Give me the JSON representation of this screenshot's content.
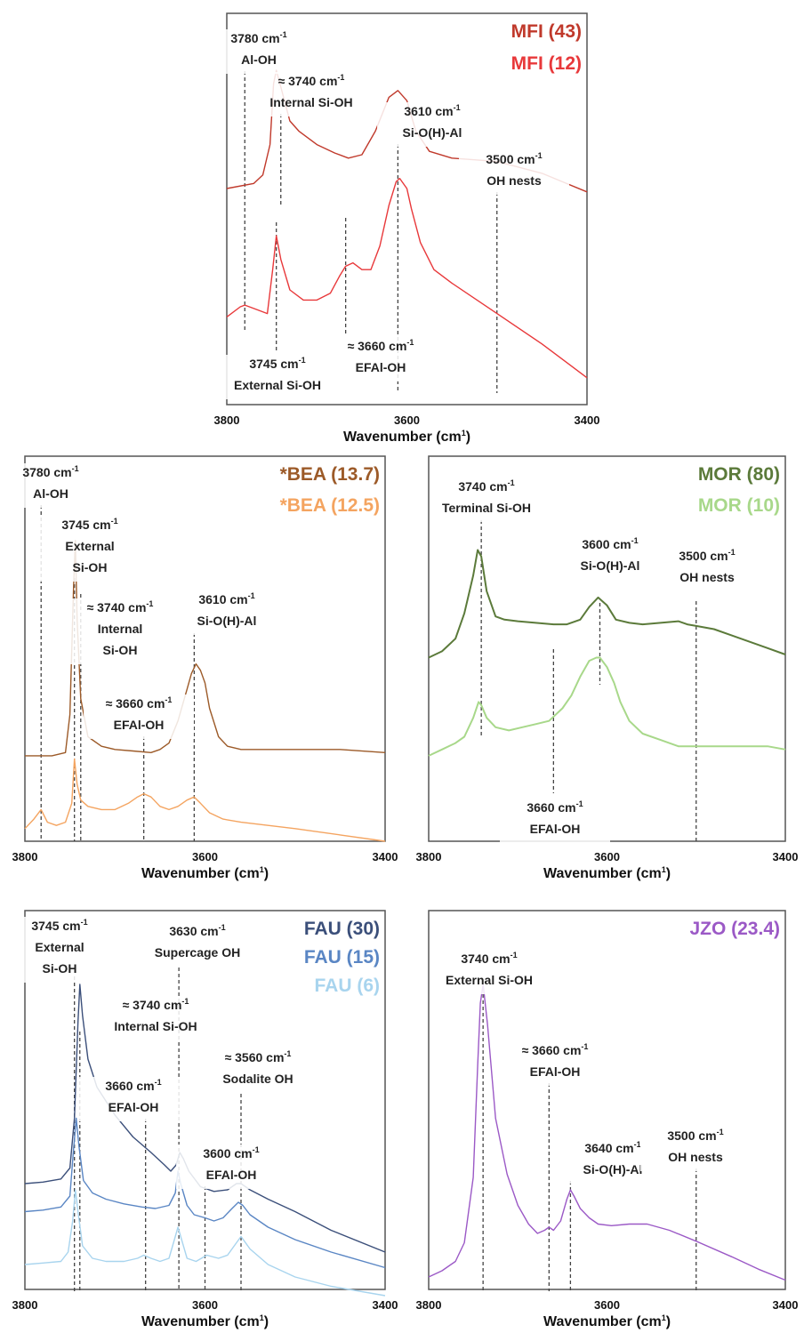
{
  "chart_data": [
    {
      "id": "mfi",
      "type": "line",
      "xlim": [
        3800,
        3400
      ],
      "x_ticks": [
        3800,
        3600,
        3400
      ],
      "xlabel": "Wavenumber (cm",
      "xlabel_sup": "1",
      "xlabel_tail": ")",
      "y_axis": "hidden",
      "grid": false,
      "legend_position": "top-right",
      "series": [
        {
          "name": "MFI (43)",
          "color": "#c0392b",
          "x": [
            3800,
            3770,
            3760,
            3752,
            3748,
            3745,
            3740,
            3730,
            3720,
            3700,
            3680,
            3665,
            3650,
            3635,
            3620,
            3610,
            3600,
            3590,
            3575,
            3550,
            3500,
            3450,
            3400
          ],
          "y": [
            0.6,
            0.615,
            0.64,
            0.73,
            0.91,
            0.95,
            0.9,
            0.8,
            0.77,
            0.73,
            0.705,
            0.69,
            0.7,
            0.77,
            0.87,
            0.89,
            0.86,
            0.77,
            0.71,
            0.69,
            0.68,
            0.645,
            0.59
          ]
        },
        {
          "name": "MFI (12)",
          "color": "#e8383a",
          "x": [
            3800,
            3785,
            3780,
            3770,
            3755,
            3749,
            3745,
            3740,
            3730,
            3715,
            3700,
            3685,
            3675,
            3668,
            3660,
            3650,
            3640,
            3630,
            3620,
            3612,
            3608,
            3600,
            3595,
            3585,
            3570,
            3550,
            3500,
            3450,
            3400
          ],
          "y": [
            0.22,
            0.25,
            0.255,
            0.245,
            0.23,
            0.36,
            0.46,
            0.39,
            0.3,
            0.27,
            0.27,
            0.29,
            0.34,
            0.37,
            0.38,
            0.36,
            0.36,
            0.43,
            0.55,
            0.62,
            0.63,
            0.6,
            0.54,
            0.44,
            0.36,
            0.32,
            0.23,
            0.14,
            0.04
          ]
        }
      ],
      "annotations": [
        {
          "text": "3780 cm",
          "sup": "-1",
          "line2": "Al-OH",
          "x": 3780
        },
        {
          "text": "≈ 3740 cm",
          "sup": "-1",
          "line2": "Internal Si-OH",
          "x": 3740
        },
        {
          "text": "3610 cm",
          "sup": "-1",
          "line2": "Si-O(H)-Al",
          "x": 3610
        },
        {
          "text": "3500 cm",
          "sup": "-1",
          "line2": "OH nests",
          "x": 3500
        },
        {
          "text": "3745 cm",
          "sup": "-1",
          "line2": "External Si-OH",
          "x": 3745
        },
        {
          "text": "≈ 3660 cm",
          "sup": "-1",
          "line2": "EFAl-OH",
          "x": 3668
        }
      ]
    },
    {
      "id": "bea",
      "type": "line",
      "xlim": [
        3800,
        3400
      ],
      "x_ticks": [
        3800,
        3600,
        3400
      ],
      "xlabel": "Wavenumber (cm",
      "xlabel_sup": "1",
      "xlabel_tail": ")",
      "y_axis": "hidden",
      "grid": false,
      "legend_position": "top-right",
      "series": [
        {
          "name": "*BEA (13.7)",
          "color": "#9c5a28",
          "x": [
            3800,
            3770,
            3755,
            3750,
            3746,
            3744,
            3742,
            3738,
            3730,
            3715,
            3700,
            3680,
            3660,
            3650,
            3640,
            3630,
            3620,
            3615,
            3610,
            3605,
            3600,
            3595,
            3585,
            3575,
            3560,
            3500,
            3450,
            3400
          ],
          "y": [
            0.27,
            0.27,
            0.28,
            0.4,
            0.8,
            0.95,
            0.7,
            0.45,
            0.33,
            0.3,
            0.29,
            0.285,
            0.28,
            0.29,
            0.31,
            0.38,
            0.48,
            0.53,
            0.56,
            0.54,
            0.5,
            0.42,
            0.33,
            0.3,
            0.29,
            0.29,
            0.29,
            0.28
          ]
        },
        {
          "name": "*BEA (12.5)",
          "color": "#f4a460",
          "x": [
            3800,
            3790,
            3782,
            3775,
            3765,
            3755,
            3748,
            3745,
            3742,
            3738,
            3730,
            3715,
            3700,
            3685,
            3675,
            3668,
            3660,
            3650,
            3640,
            3630,
            3620,
            3612,
            3605,
            3595,
            3580,
            3560,
            3500,
            3450,
            3400
          ],
          "y": [
            0.04,
            0.07,
            0.1,
            0.06,
            0.05,
            0.06,
            0.12,
            0.26,
            0.18,
            0.13,
            0.11,
            0.1,
            0.1,
            0.12,
            0.14,
            0.15,
            0.14,
            0.11,
            0.1,
            0.11,
            0.13,
            0.14,
            0.12,
            0.09,
            0.07,
            0.06,
            0.04,
            0.02,
            0.0
          ]
        }
      ],
      "annotations": [
        {
          "text": "3780 cm",
          "sup": "-1",
          "line2": "Al-OH",
          "x": 3782
        },
        {
          "text": "3745 cm",
          "sup": "-1",
          "line2": "External",
          "line3": "Si-OH",
          "x": 3745
        },
        {
          "text": "≈ 3740 cm",
          "sup": "-1",
          "line2": "Internal",
          "line3": "Si-OH",
          "x": 3738
        },
        {
          "text": "3610 cm",
          "sup": "-1",
          "line2": "Si-O(H)-Al",
          "x": 3612
        },
        {
          "text": "≈ 3660 cm",
          "sup": "-1",
          "line2": "EFAl-OH",
          "x": 3668
        }
      ]
    },
    {
      "id": "mor",
      "type": "line",
      "xlim": [
        3800,
        3400
      ],
      "x_ticks": [
        3800,
        3600,
        3400
      ],
      "xlabel": "Wavenumber (cm",
      "xlabel_sup": "1",
      "xlabel_tail": ")",
      "y_axis": "hidden",
      "grid": false,
      "legend_position": "top-right",
      "series": [
        {
          "name": "MOR (80)",
          "color": "#5b7a3a",
          "x": [
            3800,
            3785,
            3770,
            3760,
            3750,
            3745,
            3741,
            3735,
            3725,
            3715,
            3700,
            3680,
            3660,
            3645,
            3630,
            3620,
            3610,
            3600,
            3590,
            3575,
            3560,
            3540,
            3520,
            3510,
            3500,
            3480,
            3460,
            3440,
            3420,
            3400
          ],
          "y": [
            0.58,
            0.6,
            0.64,
            0.72,
            0.84,
            0.92,
            0.9,
            0.79,
            0.71,
            0.7,
            0.695,
            0.69,
            0.685,
            0.685,
            0.7,
            0.74,
            0.77,
            0.745,
            0.7,
            0.69,
            0.685,
            0.69,
            0.695,
            0.685,
            0.68,
            0.67,
            0.65,
            0.63,
            0.61,
            0.59
          ]
        },
        {
          "name": "MOR (10)",
          "color": "#a8d88a",
          "x": [
            3800,
            3785,
            3770,
            3760,
            3750,
            3744,
            3741,
            3735,
            3725,
            3710,
            3695,
            3680,
            3665,
            3650,
            3640,
            3630,
            3620,
            3612,
            3608,
            3600,
            3592,
            3585,
            3575,
            3560,
            3540,
            3520,
            3500,
            3460,
            3420,
            3400
          ],
          "y": [
            0.27,
            0.29,
            0.31,
            0.33,
            0.39,
            0.44,
            0.43,
            0.39,
            0.36,
            0.35,
            0.36,
            0.37,
            0.38,
            0.42,
            0.46,
            0.52,
            0.57,
            0.58,
            0.58,
            0.55,
            0.5,
            0.44,
            0.38,
            0.34,
            0.32,
            0.3,
            0.3,
            0.3,
            0.3,
            0.29
          ]
        }
      ],
      "annotations": [
        {
          "text": "3740 cm",
          "sup": "-1",
          "line2": "Terminal Si-OH",
          "x": 3741
        },
        {
          "text": "3600 cm",
          "sup": "-1",
          "line2": "Si-O(H)-Al",
          "x": 3608
        },
        {
          "text": "3500 cm",
          "sup": "-1",
          "line2": "OH nests",
          "x": 3500
        },
        {
          "text": "3660 cm",
          "sup": "-1",
          "line2": "EFAl-OH",
          "x": 3660
        }
      ]
    },
    {
      "id": "fau",
      "type": "line",
      "xlim": [
        3800,
        3400
      ],
      "x_ticks": [
        3800,
        3600,
        3400
      ],
      "xlabel": "Wavenumber (cm",
      "xlabel_sup": "1",
      "xlabel_tail": ")",
      "y_axis": "hidden",
      "grid": false,
      "legend_position": "top-right",
      "series": [
        {
          "name": "FAU (30)",
          "color": "#3b4f7a",
          "x": [
            3800,
            3780,
            3760,
            3750,
            3745,
            3741,
            3739,
            3736,
            3730,
            3720,
            3700,
            3680,
            3660,
            3645,
            3638,
            3632,
            3628,
            3624,
            3618,
            3605,
            3590,
            3575,
            3565,
            3560,
            3550,
            3530,
            3500,
            3460,
            3400
          ],
          "y": [
            0.34,
            0.345,
            0.355,
            0.39,
            0.55,
            0.86,
            0.98,
            0.88,
            0.74,
            0.65,
            0.56,
            0.49,
            0.44,
            0.4,
            0.38,
            0.4,
            0.44,
            0.42,
            0.38,
            0.33,
            0.315,
            0.32,
            0.34,
            0.34,
            0.32,
            0.29,
            0.25,
            0.19,
            0.12
          ]
        },
        {
          "name": "FAU (15)",
          "color": "#5a86c4",
          "x": [
            3800,
            3780,
            3760,
            3750,
            3746,
            3743,
            3740,
            3735,
            3725,
            3710,
            3690,
            3670,
            3655,
            3640,
            3633,
            3630,
            3627,
            3620,
            3612,
            3600,
            3590,
            3580,
            3570,
            3563,
            3558,
            3550,
            3530,
            3500,
            3460,
            3400
          ],
          "y": [
            0.25,
            0.255,
            0.265,
            0.3,
            0.45,
            0.55,
            0.46,
            0.35,
            0.31,
            0.29,
            0.275,
            0.265,
            0.26,
            0.27,
            0.31,
            0.38,
            0.34,
            0.27,
            0.24,
            0.23,
            0.22,
            0.23,
            0.26,
            0.28,
            0.27,
            0.24,
            0.2,
            0.16,
            0.12,
            0.07
          ]
        },
        {
          "name": "FAU (6)",
          "color": "#a8d4ee",
          "x": [
            3800,
            3780,
            3760,
            3752,
            3747,
            3744,
            3741,
            3736,
            3725,
            3710,
            3690,
            3675,
            3668,
            3660,
            3650,
            3640,
            3634,
            3630,
            3626,
            3620,
            3610,
            3598,
            3585,
            3575,
            3565,
            3560,
            3550,
            3530,
            3500,
            3460,
            3400
          ],
          "y": [
            0.08,
            0.085,
            0.09,
            0.12,
            0.22,
            0.32,
            0.25,
            0.14,
            0.1,
            0.09,
            0.09,
            0.1,
            0.11,
            0.1,
            0.09,
            0.1,
            0.16,
            0.2,
            0.16,
            0.1,
            0.09,
            0.11,
            0.1,
            0.11,
            0.15,
            0.17,
            0.13,
            0.08,
            0.04,
            0.01,
            -0.02
          ]
        }
      ],
      "annotations": [
        {
          "text": "3745 cm",
          "sup": "-1",
          "line2": "External",
          "line3": "Si-OH",
          "x": 3745
        },
        {
          "text": "3630 cm",
          "sup": "-1",
          "line2": "Supercage OH",
          "x": 3629
        },
        {
          "text": "≈ 3740 cm",
          "sup": "-1",
          "line2": "Internal Si-OH",
          "x": 3739
        },
        {
          "text": "≈ 3560 cm",
          "sup": "-1",
          "line2": "Sodalite OH",
          "x": 3560
        },
        {
          "text": "3660 cm",
          "sup": "-1",
          "line2": "EFAl-OH",
          "x": 3666
        },
        {
          "text": "3600 cm",
          "sup": "-1",
          "line2": "EFAl-OH",
          "x": 3600
        }
      ]
    },
    {
      "id": "jzo",
      "type": "line",
      "xlim": [
        3800,
        3400
      ],
      "x_ticks": [
        3800,
        3600,
        3400
      ],
      "xlabel": "Wavenumber (cm",
      "xlabel_sup": "1",
      "xlabel_tail": ")",
      "y_axis": "hidden",
      "grid": false,
      "legend_position": "top-right",
      "series": [
        {
          "name": "JZO (23.4)",
          "color": "#9b59c6",
          "x": [
            3800,
            3785,
            3770,
            3760,
            3750,
            3745,
            3742,
            3739,
            3734,
            3725,
            3712,
            3700,
            3688,
            3678,
            3670,
            3665,
            3660,
            3652,
            3645,
            3641,
            3637,
            3630,
            3620,
            3610,
            3595,
            3575,
            3555,
            3530,
            3500,
            3460,
            3430,
            3400
          ],
          "y": [
            0.04,
            0.06,
            0.09,
            0.15,
            0.36,
            0.72,
            0.92,
            0.98,
            0.85,
            0.55,
            0.37,
            0.27,
            0.21,
            0.18,
            0.19,
            0.2,
            0.19,
            0.22,
            0.29,
            0.32,
            0.3,
            0.26,
            0.23,
            0.21,
            0.205,
            0.21,
            0.21,
            0.19,
            0.155,
            0.105,
            0.065,
            0.03
          ]
        }
      ],
      "annotations": [
        {
          "text": "3740 cm",
          "sup": "-1",
          "line2": "External Si-OH",
          "x": 3739
        },
        {
          "text": "≈ 3660 cm",
          "sup": "-1",
          "line2": "EFAl-OH",
          "x": 3665
        },
        {
          "text": "3640 cm",
          "sup": "-1",
          "line2": "Si-O(H)-Al",
          "x": 3641
        },
        {
          "text": "3500 cm",
          "sup": "-1",
          "line2": "OH nests",
          "x": 3500
        }
      ]
    }
  ]
}
